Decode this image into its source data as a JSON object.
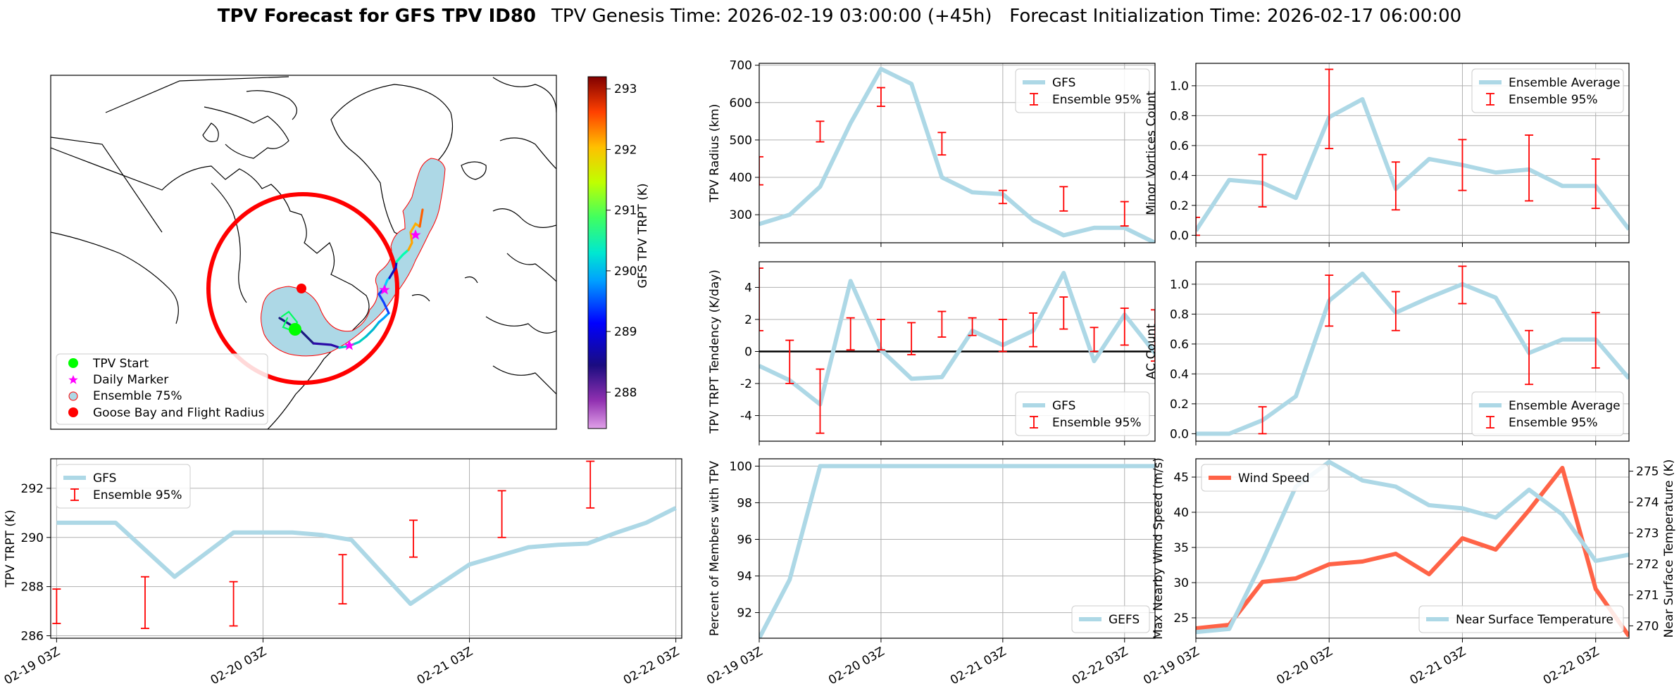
{
  "header": {
    "bold": "TPV Forecast for GFS TPV ID80",
    "rest": "TPV Genesis Time: 2026-02-19 03:00:00 (+45h)   Forecast Initialization Time: 2026-02-17 06:00:00"
  },
  "x_ticks": [
    "02-19 03Z",
    "02-20 03Z",
    "02-21 03Z",
    "02-22 03Z"
  ],
  "colors": {
    "gfs": "#add8e6",
    "ens": "#ff0000",
    "wind": "#ff6347",
    "temp_axis": "#4169e1",
    "circle": "#ff0000"
  },
  "map": {
    "colorbar": {
      "label": "GFS TPV TRPT (K)",
      "ticks": [
        "293",
        "292",
        "291",
        "290",
        "289",
        "288"
      ],
      "range": [
        287.4,
        293.2
      ]
    },
    "legend": [
      "TPV Start",
      "Daily Marker",
      "Ensemble 75%",
      "Goose Bay and Flight Radius"
    ]
  },
  "chart_data": [
    {
      "id": "trpt",
      "type": "line",
      "xlabel": "",
      "ylabel": "TPV TRPT (K)",
      "xlim": [
        0,
        21
      ],
      "ylim": [
        285.9,
        293.2
      ],
      "yticks": [
        286,
        288,
        290,
        292
      ],
      "legend": [
        "GFS",
        "Ensemble 95%"
      ],
      "legend_pos": "top-left",
      "series": [
        {
          "name": "GFS",
          "x": [
            0,
            1,
            2,
            3,
            4,
            5,
            6,
            7,
            8,
            9,
            10,
            11,
            12,
            13,
            14,
            15,
            16,
            17,
            18,
            19,
            20,
            21
          ],
          "values": [
            290.6,
            290.6,
            290.6,
            289.5,
            288.4,
            289.3,
            290.2,
            290.2,
            290.2,
            290.1,
            289.9,
            288.6,
            287.3,
            288.1,
            288.9,
            289.25,
            289.6,
            289.7,
            289.75,
            290.2,
            290.6,
            291.2
          ]
        }
      ],
      "errorbars": [
        {
          "x": 0,
          "lo": 286.5,
          "hi": 287.9
        },
        {
          "x": 3,
          "lo": 286.3,
          "hi": 288.4
        },
        {
          "x": 6,
          "lo": 286.4,
          "hi": 288.2
        },
        {
          "x": 9,
          "lo": null,
          "hi": null
        },
        {
          "x": 9.7,
          "lo": 287.3,
          "hi": 289.3
        },
        {
          "x": 12.1,
          "lo": 289.2,
          "hi": 290.7
        },
        {
          "x": 15.1,
          "lo": 290.0,
          "hi": 291.9
        },
        {
          "x": 18.1,
          "lo": 291.2,
          "hi": 293.1
        }
      ]
    },
    {
      "id": "radius",
      "type": "line",
      "ylabel": "TPV Radius (km)",
      "ylim": [
        225,
        705
      ],
      "yticks": [
        300,
        400,
        500,
        600,
        700
      ],
      "legend": [
        "GFS",
        "Ensemble 95%"
      ],
      "legend_pos": "top-right",
      "series": [
        {
          "name": "GFS",
          "values": [
            275,
            300,
            375,
            545,
            690,
            650,
            400,
            360,
            355,
            285,
            245,
            265,
            265,
            225
          ]
        }
      ],
      "errorbars": [
        {
          "x": 0,
          "lo": 380,
          "hi": 455
        },
        {
          "x": 2,
          "lo": 495,
          "hi": 550
        },
        {
          "x": 4,
          "lo": 590,
          "hi": 640
        },
        {
          "x": 6,
          "lo": 460,
          "hi": 520
        },
        {
          "x": 8,
          "lo": 330,
          "hi": 365
        },
        {
          "x": 10,
          "lo": 310,
          "hi": 375
        },
        {
          "x": 12,
          "lo": 270,
          "hi": 335
        }
      ]
    },
    {
      "id": "minor",
      "type": "line",
      "ylabel": "Minor Vortices Count",
      "ylim": [
        -0.05,
        1.15
      ],
      "yticks": [
        0.0,
        0.2,
        0.4,
        0.6,
        0.8,
        1.0
      ],
      "legend": [
        "Ensemble Average",
        "Ensemble 95%"
      ],
      "legend_pos": "top-right",
      "series": [
        {
          "name": "Ensemble Average",
          "values": [
            0.03,
            0.37,
            0.35,
            0.25,
            0.79,
            0.91,
            0.31,
            0.51,
            0.47,
            0.42,
            0.44,
            0.33,
            0.33,
            0.04
          ]
        }
      ],
      "errorbars": [
        {
          "x": 0,
          "lo": 0.0,
          "hi": 0.12
        },
        {
          "x": 2,
          "lo": 0.19,
          "hi": 0.54
        },
        {
          "x": 4,
          "lo": 0.58,
          "hi": 1.11
        },
        {
          "x": 6,
          "lo": 0.17,
          "hi": 0.49
        },
        {
          "x": 8,
          "lo": 0.3,
          "hi": 0.64
        },
        {
          "x": 10,
          "lo": 0.23,
          "hi": 0.67
        },
        {
          "x": 12,
          "lo": 0.18,
          "hi": 0.51
        }
      ]
    },
    {
      "id": "tend",
      "type": "line",
      "ylabel": "TPV TRPT Tendency (K/day)",
      "ylim": [
        -5.6,
        5.6
      ],
      "yticks": [
        -4,
        -2,
        0,
        2,
        4
      ],
      "zero_line": true,
      "legend": [
        "GFS",
        "Ensemble 95%"
      ],
      "legend_pos": "bottom-right",
      "series": [
        {
          "name": "GFS",
          "values": [
            -0.9,
            -1.8,
            -3.3,
            4.4,
            0.1,
            -1.7,
            -1.6,
            1.3,
            0.4,
            1.3,
            4.9,
            -0.6,
            2.3,
            -0.1
          ]
        }
      ],
      "errorbars": [
        {
          "x": 0,
          "lo": 1.3,
          "hi": 5.2
        },
        {
          "x": 1,
          "lo": -2.0,
          "hi": 0.7
        },
        {
          "x": 2,
          "lo": -5.1,
          "hi": -1.1
        },
        {
          "x": 3,
          "lo": 0.1,
          "hi": 2.1
        },
        {
          "x": 4,
          "lo": 0.1,
          "hi": 2.0
        },
        {
          "x": 5,
          "lo": -0.2,
          "hi": 1.8
        },
        {
          "x": 6,
          "lo": 0.9,
          "hi": 2.5
        },
        {
          "x": 7,
          "lo": 1.0,
          "hi": 2.1
        },
        {
          "x": 8,
          "lo": 0.0,
          "hi": 2.0
        },
        {
          "x": 9,
          "lo": 0.3,
          "hi": 2.4
        },
        {
          "x": 10,
          "lo": 1.4,
          "hi": 3.4
        },
        {
          "x": 11,
          "lo": 0.0,
          "hi": 1.5
        },
        {
          "x": 12,
          "lo": 0.4,
          "hi": 2.7
        },
        {
          "x": 13,
          "lo": -0.6,
          "hi": 2.6
        }
      ]
    },
    {
      "id": "ac",
      "type": "line",
      "ylabel": "AC Count",
      "ylim": [
        -0.05,
        1.15
      ],
      "yticks": [
        0.0,
        0.2,
        0.4,
        0.6,
        0.8,
        1.0
      ],
      "legend": [
        "Ensemble Average",
        "Ensemble 95%"
      ],
      "legend_pos": "bottom-right",
      "series": [
        {
          "name": "Ensemble Average",
          "values": [
            0.0,
            0.0,
            0.09,
            0.25,
            0.89,
            1.07,
            0.81,
            0.91,
            1.0,
            0.91,
            0.54,
            0.63,
            0.63,
            0.37
          ]
        }
      ],
      "errorbars": [
        {
          "x": 2,
          "lo": 0.0,
          "hi": 0.18
        },
        {
          "x": 4,
          "lo": 0.72,
          "hi": 1.06
        },
        {
          "x": 6,
          "lo": 0.69,
          "hi": 0.95
        },
        {
          "x": 8,
          "lo": 0.87,
          "hi": 1.12
        },
        {
          "x": 10,
          "lo": 0.33,
          "hi": 0.69
        },
        {
          "x": 12,
          "lo": 0.44,
          "hi": 0.81
        }
      ]
    },
    {
      "id": "pct",
      "type": "line",
      "ylabel": "Percent of Members with TPV",
      "ylim": [
        90.6,
        100.4
      ],
      "yticks": [
        92,
        94,
        96,
        98,
        100
      ],
      "legend": [
        "GEFS"
      ],
      "legend_pos": "bottom-right",
      "series": [
        {
          "name": "GEFS",
          "values": [
            90.6,
            93.8,
            100,
            100,
            100,
            100,
            100,
            100,
            100,
            100,
            100,
            100,
            100,
            100
          ]
        }
      ]
    },
    {
      "id": "wind",
      "type": "line",
      "ylabel": "Max Nearby Wind Speed (m/s)",
      "ylabel2": "Near Surface Temperature (K)",
      "ylim": [
        22.1,
        47.6
      ],
      "yticks": [
        25,
        30,
        35,
        40,
        45
      ],
      "ylim2": [
        269.6,
        275.4
      ],
      "yticks2": [
        270,
        271,
        272,
        273,
        274,
        275
      ],
      "legend": [
        "Wind Speed"
      ],
      "legend2": [
        "Near Surface Temperature"
      ],
      "series": [
        {
          "name": "Wind Speed",
          "axis": "left",
          "values": [
            23.5,
            24.0,
            30.1,
            30.6,
            32.6,
            33.0,
            34.1,
            31.2,
            36.3,
            34.7,
            40.3,
            46.3,
            29.1,
            22.4
          ]
        },
        {
          "name": "Near Surface Temperature",
          "axis": "right",
          "values": [
            269.8,
            269.9,
            272.1,
            274.5,
            275.3,
            274.7,
            274.5,
            273.9,
            273.8,
            273.5,
            274.4,
            273.6,
            272.1,
            272.3
          ]
        }
      ]
    }
  ]
}
